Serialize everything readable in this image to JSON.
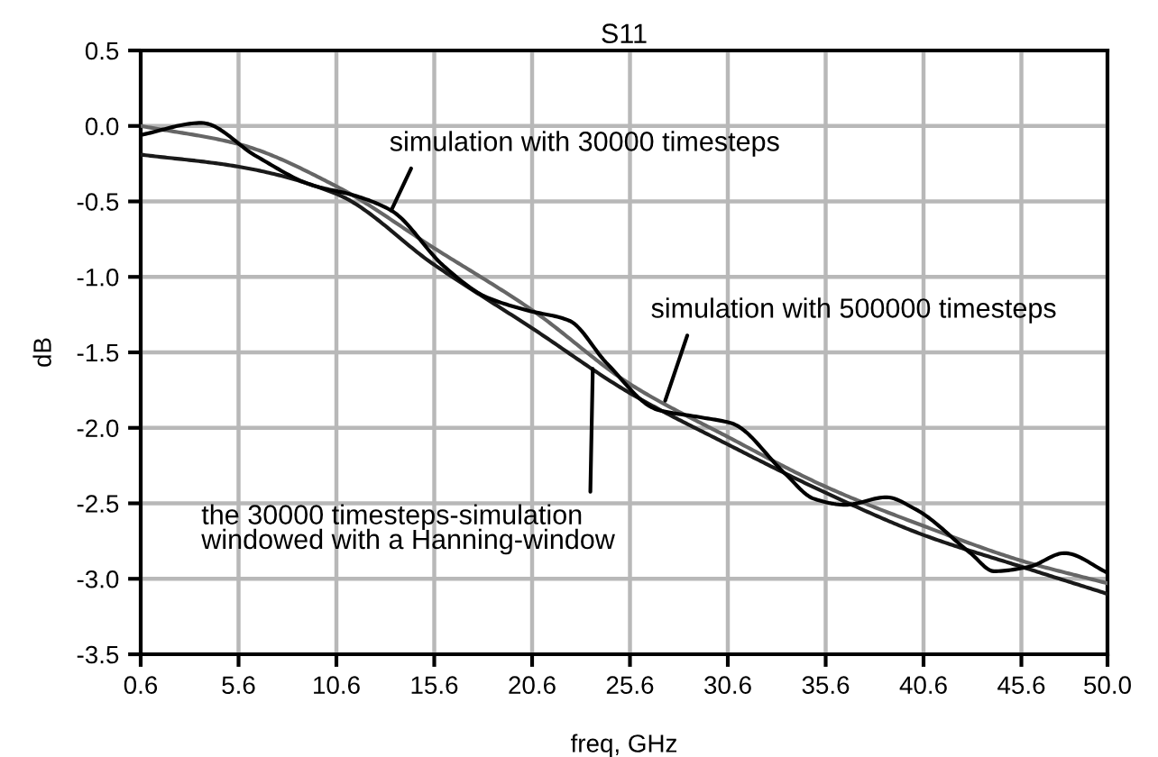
{
  "chart_data": {
    "type": "line",
    "title": "S11",
    "xlabel": "freq, GHz",
    "ylabel": "dB",
    "xlim": [
      0.6,
      50.0
    ],
    "xticks": [
      0.6,
      5.6,
      10.6,
      15.6,
      20.6,
      25.6,
      30.6,
      35.6,
      40.6,
      45.6,
      {
        "value": 50.0,
        "label": "50.0"
      }
    ],
    "ylim": [
      -3.5,
      0.5
    ],
    "yticks": [
      {
        "value": 0.5,
        "label": "0.5"
      },
      {
        "value": 0.0,
        "label": "0.0"
      },
      {
        "value": -0.5,
        "label": "-0.5"
      },
      {
        "value": -1.0,
        "label": "-1.0"
      },
      {
        "value": -1.5,
        "label": "-1.5"
      },
      {
        "value": -2.0,
        "label": "-2.0"
      },
      {
        "value": -2.5,
        "label": "-2.5"
      },
      {
        "value": -3.0,
        "label": "-3.0"
      },
      {
        "value": -3.5,
        "label": "-3.5"
      }
    ],
    "grid": true,
    "legend": false,
    "marker": "none",
    "line_style": "solid",
    "series": [
      {
        "color": "#666666",
        "x": [
          0.6,
          5.6,
          10.6,
          15.6,
          20.6,
          25.6,
          30.6,
          35.6,
          40.6,
          45.6,
          50.0
        ],
        "values": [
          0.0,
          -0.12,
          -0.4,
          -0.81,
          -1.22,
          -1.71,
          -2.06,
          -2.39,
          -2.65,
          -2.88,
          -3.03
        ]
      },
      {
        "color": "#1a1a1a",
        "x": [
          0.6,
          5.6,
          10.6,
          15.6,
          20.6,
          25.6,
          30.6,
          35.6,
          40.6,
          45.6,
          50.0
        ],
        "values": [
          -0.19,
          -0.27,
          -0.45,
          -0.92,
          -1.34,
          -1.77,
          -2.11,
          -2.43,
          -2.71,
          -2.92,
          -3.1
        ]
      },
      {
        "color": "#000000",
        "x": [
          0.6,
          3.7,
          6.5,
          9.3,
          11.5,
          13.4,
          16.1,
          18.2,
          20.3,
          22.5,
          24.4,
          27.0,
          29.2,
          30.8,
          33.5,
          35.0,
          36.6,
          38.7,
          40.2,
          43.0,
          44.2,
          46.0,
          47.8,
          50.0
        ],
        "values": [
          -0.06,
          0.02,
          -0.2,
          -0.39,
          -0.46,
          -0.56,
          -0.93,
          -1.13,
          -1.22,
          -1.29,
          -1.57,
          -1.88,
          -1.93,
          -1.97,
          -2.3,
          -2.47,
          -2.51,
          -2.46,
          -2.54,
          -2.83,
          -2.95,
          -2.92,
          -2.83,
          -2.96
        ]
      }
    ],
    "annotations": [
      {
        "text": "simulation with 30000 timesteps",
        "x": 13.4,
        "y": -0.56
      },
      {
        "text": "simulation with 500000 timesteps",
        "x": 27.4,
        "y": -1.82
      },
      {
        "text": "the 30000 timesteps-simulation\nwindowed with a Hanning-window",
        "x": 23.7,
        "y": -1.61
      }
    ]
  }
}
